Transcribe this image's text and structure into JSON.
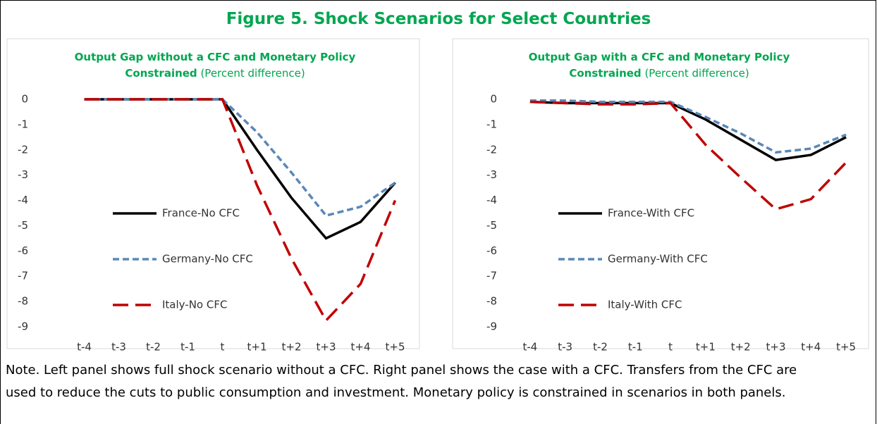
{
  "figure_title": "Figure 5. Shock Scenarios for Select Countries",
  "note": "Note. Left panel shows full shock scenario without a CFC. Right panel shows the case with a CFC. Transfers from the CFC are used to reduce the cuts to public consumption and investment. Monetary policy is constrained in scenarios in both panels.",
  "chart_data": [
    {
      "type": "line",
      "title": "Output Gap without a CFC and Monetary Policy Constrained",
      "subtitle": "(Percent difference)",
      "categories": [
        "t-4",
        "t-3",
        "t-2",
        "t-1",
        "t",
        "t+1",
        "t+2",
        "t+3",
        "t+4",
        "t+5"
      ],
      "ylim": [
        -9,
        0
      ],
      "yticks": [
        0,
        -1,
        -2,
        -3,
        -4,
        -5,
        -6,
        -7,
        -8,
        -9
      ],
      "grid": false,
      "legend": "left",
      "series": [
        {
          "name": "France-No CFC",
          "color": "#000000",
          "dash": "solid",
          "values": [
            0,
            0,
            0,
            0,
            0,
            -2.0,
            -3.9,
            -5.5,
            -4.85,
            -3.3
          ]
        },
        {
          "name": "Germany-No CFC",
          "color": "#5b87b8",
          "dash": "dash",
          "values": [
            0,
            0,
            0,
            0,
            0,
            -1.3,
            -2.9,
            -4.6,
            -4.25,
            -3.3
          ]
        },
        {
          "name": "Italy-No CFC",
          "color": "#c00000",
          "dash": "longdash",
          "values": [
            0,
            0,
            0,
            0,
            0,
            -3.4,
            -6.3,
            -8.75,
            -7.3,
            -4.0
          ]
        }
      ]
    },
    {
      "type": "line",
      "title": "Output Gap with a CFC and Monetary Policy Constrained",
      "subtitle": "(Percent difference)",
      "categories": [
        "t-4",
        "t-3",
        "t-2",
        "t-1",
        "t",
        "t+1",
        "t+2",
        "t+3",
        "t+4",
        "t+5"
      ],
      "ylim": [
        -9,
        0
      ],
      "yticks": [
        0,
        -1,
        -2,
        -3,
        -4,
        -5,
        -6,
        -7,
        -8,
        -9
      ],
      "grid": false,
      "legend": "left",
      "series": [
        {
          "name": "France-With CFC",
          "color": "#000000",
          "dash": "solid",
          "values": [
            -0.1,
            -0.15,
            -0.15,
            -0.15,
            -0.15,
            -0.8,
            -1.6,
            -2.4,
            -2.2,
            -1.5
          ]
        },
        {
          "name": "Germany-With CFC",
          "color": "#5b87b8",
          "dash": "dash",
          "values": [
            -0.05,
            -0.05,
            -0.1,
            -0.1,
            -0.1,
            -0.7,
            -1.35,
            -2.1,
            -1.95,
            -1.4
          ]
        },
        {
          "name": "Italy-With CFC",
          "color": "#c00000",
          "dash": "longdash",
          "values": [
            -0.1,
            -0.15,
            -0.2,
            -0.2,
            -0.15,
            -1.8,
            -3.1,
            -4.35,
            -3.95,
            -2.5
          ]
        }
      ]
    }
  ]
}
